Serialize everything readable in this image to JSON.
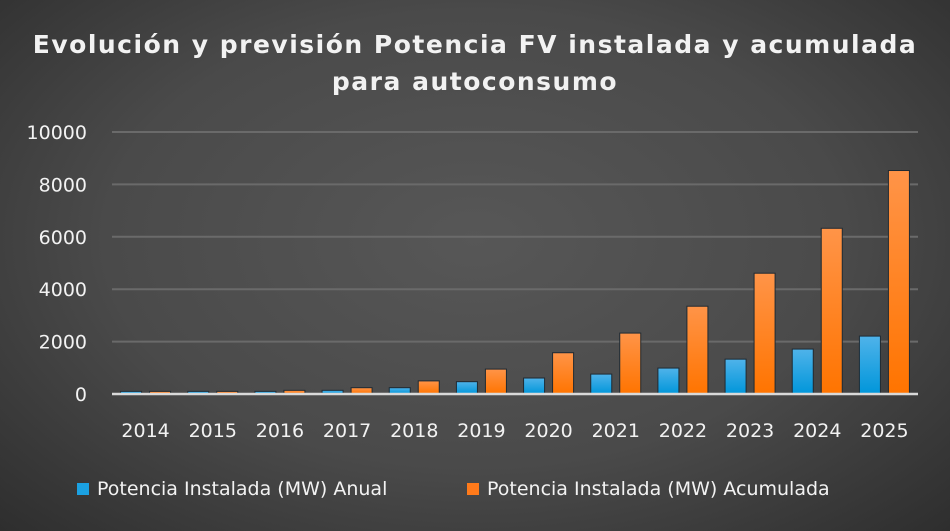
{
  "chart_data": {
    "type": "bar",
    "title": "Evolución y previsión Potencia FV instalada y acumulada para autoconsumo",
    "categories": [
      "2014",
      "2015",
      "2016",
      "2017",
      "2018",
      "2019",
      "2020",
      "2021",
      "2022",
      "2023",
      "2024",
      "2025"
    ],
    "series": [
      {
        "name": "Potencia Instalada (MW) Anual",
        "color": "#1ba1e2",
        "values": [
          100,
          100,
          100,
          140,
          240,
          470,
          610,
          760,
          990,
          1330,
          1715,
          2210
        ]
      },
      {
        "name": "Potencia Instalada (MW) Acumulada",
        "color": "#ff7a1a",
        "values": [
          100,
          100,
          140,
          240,
          500,
          950,
          1575,
          2325,
          3350,
          4610,
          6325,
          8530
        ]
      }
    ],
    "ylim": [
      0,
      10000
    ],
    "yticks": [
      "0",
      "2000",
      "4000",
      "6000",
      "8000",
      "10000"
    ],
    "grid": true,
    "legend": "bottom"
  }
}
